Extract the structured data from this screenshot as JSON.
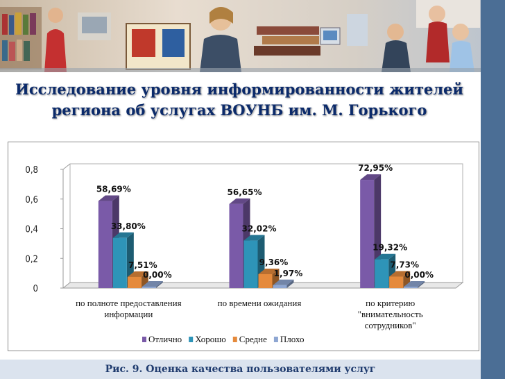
{
  "title": "Исследование уровня информированности жителей региона об услугах ВОУНБ им. М. Горького",
  "caption": "Рис.  9. Оценка качества пользователями услуг",
  "colors": {
    "Отлично": "#7a5aa8",
    "Хорошо": "#2e94b8",
    "Средне": "#e58a3c",
    "Плохо": "#8ea6d2"
  },
  "chart_data": {
    "type": "bar",
    "categories": [
      [
        "по полноте предоставления",
        "информации"
      ],
      [
        "по времени ожидания"
      ],
      [
        "по критерию",
        "\"внимательность",
        "сотрудников\""
      ]
    ],
    "ylim": [
      0,
      0.8
    ],
    "yticks": [
      "0",
      "0,2",
      "0,4",
      "0,6",
      "0,8"
    ],
    "series": [
      {
        "name": "Отлично",
        "values": [
          0.5869,
          0.5665,
          0.7295
        ],
        "labels": [
          "58,69%",
          "56,65%",
          "72,95%"
        ]
      },
      {
        "name": "Хорошо",
        "values": [
          0.338,
          0.3202,
          0.1932
        ],
        "labels": [
          "33,80%",
          "32,02%",
          "19,32%"
        ]
      },
      {
        "name": "Средне",
        "values": [
          0.0751,
          0.0936,
          0.0773
        ],
        "labels": [
          "7,51%",
          "9,36%",
          "7,73%"
        ]
      },
      {
        "name": "Плохо",
        "values": [
          0.0,
          0.0197,
          0.0
        ],
        "labels": [
          "0,00%",
          "1,97%",
          "0,00%"
        ]
      }
    ],
    "legend_position": "bottom",
    "grid": false
  }
}
